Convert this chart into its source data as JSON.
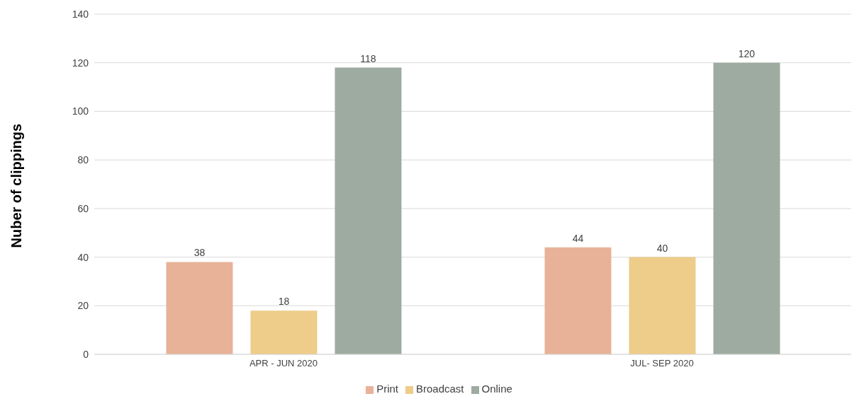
{
  "chart_data": {
    "type": "bar",
    "ylabel": "Nuber of clippings",
    "categories": [
      "APR - JUN 2020",
      "JUL- SEP 2020"
    ],
    "series": [
      {
        "name": "Print",
        "color": "#e8b298",
        "values": [
          38,
          44
        ]
      },
      {
        "name": "Broadcast",
        "color": "#eecc8a",
        "values": [
          18,
          40
        ]
      },
      {
        "name": "Online",
        "color": "#9eaba0",
        "values": [
          118,
          120
        ]
      }
    ],
    "ylim": [
      0,
      140
    ],
    "yticks": [
      0,
      20,
      40,
      60,
      80,
      100,
      120,
      140
    ],
    "grid": "y",
    "legend": "bottom",
    "data_labels": true
  }
}
